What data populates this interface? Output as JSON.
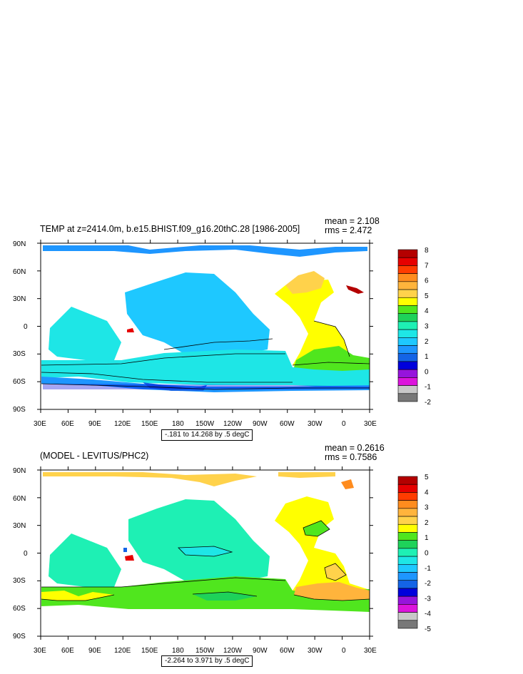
{
  "panels": [
    {
      "id": "top",
      "title": "TEMP at z=2414.0m, b.e15.BHIST.f09_g16.20thC.28 [1986-2005]",
      "mean": "mean = 2.108",
      "rms": "rms = 2.472",
      "range_label": "-.181 to 14.268 by .5 degC",
      "colorbar": {
        "labels": [
          "8",
          "7",
          "6",
          "5",
          "4",
          "3",
          "2",
          "1",
          "0",
          "-1",
          "-2"
        ],
        "colors": [
          "#b40000",
          "#e60000",
          "#ff3c00",
          "#ff8c1e",
          "#ffb43c",
          "#ffd24b",
          "#ffff00",
          "#50e61e",
          "#1ed25a",
          "#1ef0b4",
          "#1ee6e6",
          "#1ec8ff",
          "#1e96ff",
          "#1464e6",
          "#0000dc",
          "#9614dc",
          "#dc14dc",
          "#c8c8c8",
          "#787878"
        ]
      }
    },
    {
      "id": "bottom",
      "title": "(MODEL - LEVITUS/PHC2)",
      "mean": "mean = 0.2616",
      "rms": "rms = 0.7586",
      "range_label": "-2.264 to 3.971 by .5 degC",
      "colorbar": {
        "labels": [
          "5",
          "4",
          "3",
          "2",
          "1",
          "0",
          "-1",
          "-2",
          "-3",
          "-4",
          "-5"
        ],
        "colors": [
          "#b40000",
          "#e60000",
          "#ff3c00",
          "#ff8c1e",
          "#ffb43c",
          "#ffd24b",
          "#ffff00",
          "#50e61e",
          "#1ed25a",
          "#1ef0b4",
          "#1ee6e6",
          "#1ec8ff",
          "#1e96ff",
          "#1464e6",
          "#0000dc",
          "#9614dc",
          "#dc14dc",
          "#c8c8c8",
          "#787878"
        ]
      }
    }
  ],
  "axes": {
    "lat_labels": [
      "90N",
      "60N",
      "30N",
      "0",
      "30S",
      "60S",
      "90S"
    ],
    "lon_labels": [
      "30E",
      "60E",
      "90E",
      "120E",
      "150E",
      "180",
      "150W",
      "120W",
      "90W",
      "60W",
      "30W",
      "0",
      "30E"
    ]
  }
}
